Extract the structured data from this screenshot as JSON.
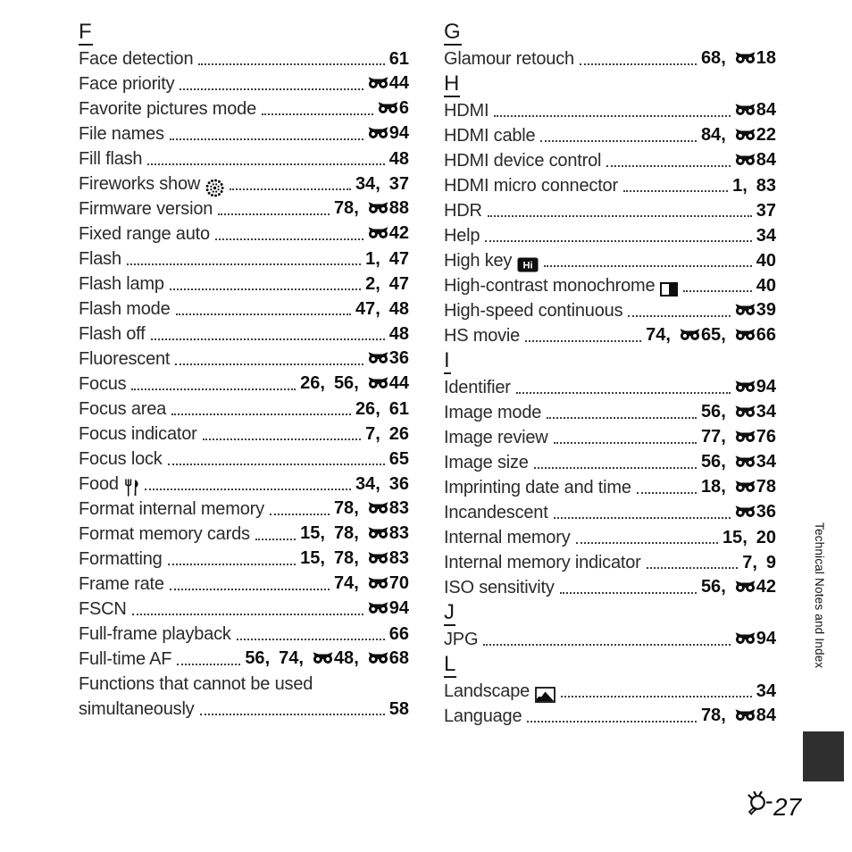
{
  "sidebar": {
    "label": "Technical Notes and Index"
  },
  "footer": {
    "page_icon": "tech-notes-bulb-icon",
    "page_number": "27"
  },
  "icons": {
    "reference_icon": "reference-section-icon",
    "label_icons": [
      "fireworks-icon",
      "food-icon",
      "high-key-icon",
      "high-contrast-monochrome-icon",
      "landscape-icon"
    ]
  },
  "colors": {
    "text": "#1c1c1c",
    "tab": "#2f2f2f",
    "background": "#ffffff"
  },
  "columns": [
    {
      "sections": [
        {
          "letter": "F",
          "entries": [
            {
              "label": "Face detection",
              "refs": [
                {
                  "n": "61"
                }
              ]
            },
            {
              "label": "Face priority",
              "refs": [
                {
                  "e": true,
                  "n": "44"
                }
              ]
            },
            {
              "label": "Favorite pictures mode",
              "refs": [
                {
                  "e": true,
                  "n": "6"
                }
              ]
            },
            {
              "label": "File names",
              "refs": [
                {
                  "e": true,
                  "n": "94"
                }
              ]
            },
            {
              "label": "Fill flash",
              "refs": [
                {
                  "n": "48"
                }
              ]
            },
            {
              "label": "Fireworks show",
              "icon": "fireworks-icon",
              "refs": [
                {
                  "n": "34"
                },
                {
                  "n": "37"
                }
              ]
            },
            {
              "label": "Firmware version",
              "refs": [
                {
                  "n": "78"
                },
                {
                  "e": true,
                  "n": "88"
                }
              ]
            },
            {
              "label": "Fixed range auto",
              "refs": [
                {
                  "e": true,
                  "n": "42"
                }
              ]
            },
            {
              "label": "Flash",
              "refs": [
                {
                  "n": "1"
                },
                {
                  "n": "47"
                }
              ]
            },
            {
              "label": "Flash lamp",
              "refs": [
                {
                  "n": "2"
                },
                {
                  "n": "47"
                }
              ]
            },
            {
              "label": "Flash mode",
              "refs": [
                {
                  "n": "47"
                },
                {
                  "n": "48"
                }
              ]
            },
            {
              "label": "Flash off",
              "refs": [
                {
                  "n": "48"
                }
              ]
            },
            {
              "label": "Fluorescent",
              "refs": [
                {
                  "e": true,
                  "n": "36"
                }
              ]
            },
            {
              "label": "Focus",
              "refs": [
                {
                  "n": "26"
                },
                {
                  "n": "56"
                },
                {
                  "e": true,
                  "n": "44"
                }
              ]
            },
            {
              "label": "Focus area",
              "refs": [
                {
                  "n": "26"
                },
                {
                  "n": "61"
                }
              ]
            },
            {
              "label": "Focus indicator",
              "refs": [
                {
                  "n": "7"
                },
                {
                  "n": "26"
                }
              ]
            },
            {
              "label": "Focus lock",
              "refs": [
                {
                  "n": "65"
                }
              ]
            },
            {
              "label": "Food",
              "icon": "food-icon",
              "refs": [
                {
                  "n": "34"
                },
                {
                  "n": "36"
                }
              ]
            },
            {
              "label": "Format internal memory",
              "refs": [
                {
                  "n": "78"
                },
                {
                  "e": true,
                  "n": "83"
                }
              ]
            },
            {
              "label": "Format memory cards",
              "refs": [
                {
                  "n": "15"
                },
                {
                  "n": "78"
                },
                {
                  "e": true,
                  "n": "83"
                }
              ]
            },
            {
              "label": "Formatting",
              "refs": [
                {
                  "n": "15"
                },
                {
                  "n": "78"
                },
                {
                  "e": true,
                  "n": "83"
                }
              ]
            },
            {
              "label": "Frame rate",
              "refs": [
                {
                  "n": "74"
                },
                {
                  "e": true,
                  "n": "70"
                }
              ]
            },
            {
              "label": "FSCN",
              "refs": [
                {
                  "e": true,
                  "n": "94"
                }
              ]
            },
            {
              "label": "Full-frame playback",
              "refs": [
                {
                  "n": "66"
                }
              ]
            },
            {
              "label": "Full-time AF",
              "refs": [
                {
                  "n": "56"
                },
                {
                  "n": "74"
                },
                {
                  "e": true,
                  "n": "48"
                },
                {
                  "e": true,
                  "n": "68"
                }
              ]
            },
            {
              "label": "Functions that cannot be used",
              "label2": "simultaneously",
              "refs": [
                {
                  "n": "58"
                }
              ]
            }
          ]
        }
      ]
    },
    {
      "sections": [
        {
          "letter": "G",
          "entries": [
            {
              "label": "Glamour retouch",
              "refs": [
                {
                  "n": "68"
                },
                {
                  "e": true,
                  "n": "18"
                }
              ]
            }
          ]
        },
        {
          "letter": "H",
          "entries": [
            {
              "label": "HDMI",
              "refs": [
                {
                  "e": true,
                  "n": "84"
                }
              ]
            },
            {
              "label": "HDMI cable",
              "refs": [
                {
                  "n": "84"
                },
                {
                  "e": true,
                  "n": "22"
                }
              ]
            },
            {
              "label": "HDMI device control",
              "refs": [
                {
                  "e": true,
                  "n": "84"
                }
              ]
            },
            {
              "label": "HDMI micro connector",
              "refs": [
                {
                  "n": "1"
                },
                {
                  "n": "83"
                }
              ]
            },
            {
              "label": "HDR",
              "refs": [
                {
                  "n": "37"
                }
              ]
            },
            {
              "label": "Help",
              "refs": [
                {
                  "n": "34"
                }
              ]
            },
            {
              "label": "High key",
              "icon": "high-key-icon",
              "refs": [
                {
                  "n": "40"
                }
              ]
            },
            {
              "label": "High-contrast monochrome",
              "icon": "high-contrast-monochrome-icon",
              "refs": [
                {
                  "n": "40"
                }
              ]
            },
            {
              "label": "High-speed continuous",
              "refs": [
                {
                  "e": true,
                  "n": "39"
                }
              ]
            },
            {
              "label": "HS movie",
              "refs": [
                {
                  "n": "74"
                },
                {
                  "e": true,
                  "n": "65"
                },
                {
                  "e": true,
                  "n": "66"
                }
              ]
            }
          ]
        },
        {
          "letter": "I",
          "entries": [
            {
              "label": "Identifier",
              "refs": [
                {
                  "e": true,
                  "n": "94"
                }
              ]
            },
            {
              "label": "Image mode",
              "refs": [
                {
                  "n": "56"
                },
                {
                  "e": true,
                  "n": "34"
                }
              ]
            },
            {
              "label": "Image review",
              "refs": [
                {
                  "n": "77"
                },
                {
                  "e": true,
                  "n": "76"
                }
              ]
            },
            {
              "label": "Image size",
              "refs": [
                {
                  "n": "56"
                },
                {
                  "e": true,
                  "n": "34"
                }
              ]
            },
            {
              "label": "Imprinting date and time",
              "refs": [
                {
                  "n": "18"
                },
                {
                  "e": true,
                  "n": "78"
                }
              ]
            },
            {
              "label": "Incandescent",
              "refs": [
                {
                  "e": true,
                  "n": "36"
                }
              ]
            },
            {
              "label": "Internal memory",
              "refs": [
                {
                  "n": "15"
                },
                {
                  "n": "20"
                }
              ]
            },
            {
              "label": "Internal memory indicator",
              "refs": [
                {
                  "n": "7"
                },
                {
                  "n": "9"
                }
              ]
            },
            {
              "label": "ISO sensitivity",
              "refs": [
                {
                  "n": "56"
                },
                {
                  "e": true,
                  "n": "42"
                }
              ]
            }
          ]
        },
        {
          "letter": "J",
          "entries": [
            {
              "label": "JPG",
              "refs": [
                {
                  "e": true,
                  "n": "94"
                }
              ]
            }
          ]
        },
        {
          "letter": "L",
          "entries": [
            {
              "label": "Landscape",
              "icon": "landscape-icon",
              "refs": [
                {
                  "n": "34"
                }
              ]
            },
            {
              "label": "Language",
              "refs": [
                {
                  "n": "78"
                },
                {
                  "e": true,
                  "n": "84"
                }
              ]
            }
          ]
        }
      ]
    }
  ]
}
